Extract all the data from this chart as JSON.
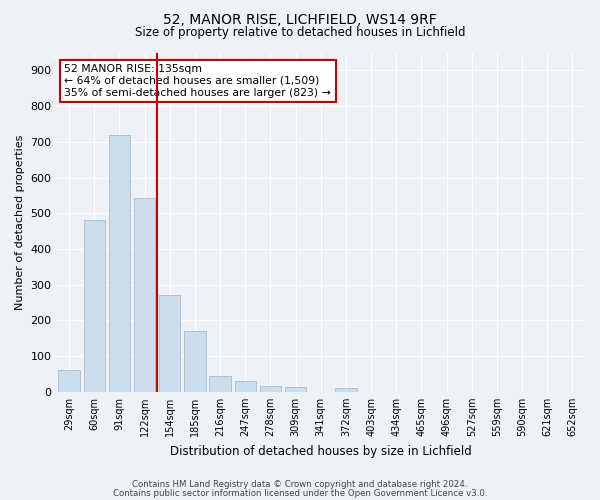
{
  "title1": "52, MANOR RISE, LICHFIELD, WS14 9RF",
  "title2": "Size of property relative to detached houses in Lichfield",
  "xlabel": "Distribution of detached houses by size in Lichfield",
  "ylabel": "Number of detached properties",
  "categories": [
    "29sqm",
    "60sqm",
    "91sqm",
    "122sqm",
    "154sqm",
    "185sqm",
    "216sqm",
    "247sqm",
    "278sqm",
    "309sqm",
    "341sqm",
    "372sqm",
    "403sqm",
    "434sqm",
    "465sqm",
    "496sqm",
    "527sqm",
    "559sqm",
    "590sqm",
    "621sqm",
    "652sqm"
  ],
  "values": [
    62,
    480,
    718,
    542,
    270,
    170,
    44,
    30,
    16,
    13,
    0,
    10,
    0,
    0,
    0,
    0,
    0,
    0,
    0,
    0,
    0
  ],
  "bar_color": "#ccdded",
  "bar_edge_color": "#aabccc",
  "property_line_x": 3.5,
  "annotation_line1": "52 MANOR RISE: 135sqm",
  "annotation_line2": "← 64% of detached houses are smaller (1,509)",
  "annotation_line3": "35% of semi-detached houses are larger (823) →",
  "annotation_box_color": "#ffffff",
  "annotation_box_edge_color": "#cc0000",
  "vline_color": "#cc0000",
  "footer1": "Contains HM Land Registry data © Crown copyright and database right 2024.",
  "footer2": "Contains public sector information licensed under the Open Government Licence v3.0.",
  "bg_color": "#eef2f7",
  "plot_bg_color": "#eef2f7",
  "ylim": [
    0,
    950
  ],
  "yticks": [
    0,
    100,
    200,
    300,
    400,
    500,
    600,
    700,
    800,
    900
  ]
}
